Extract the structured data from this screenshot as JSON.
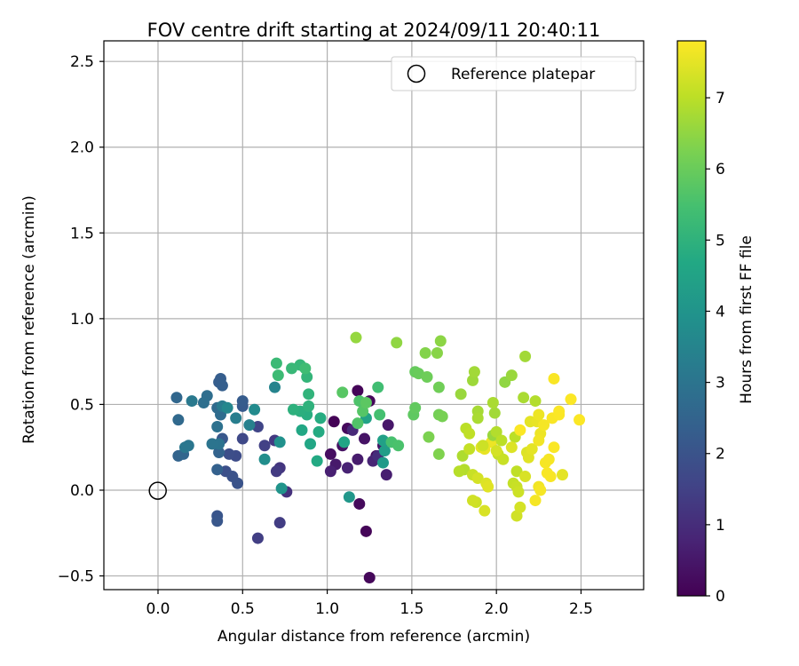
{
  "chart_data": {
    "type": "scatter",
    "title": "FOV centre drift starting at 2024/09/11 20:40:11",
    "xlabel": "Angular distance from reference (arcmin)",
    "ylabel": "Rotation from reference (arcmin)",
    "xlim": [
      -0.32,
      2.87
    ],
    "ylim": [
      -0.58,
      2.62
    ],
    "xticks": [
      0.0,
      0.5,
      1.0,
      1.5,
      2.0,
      2.5
    ],
    "xtick_labels": [
      "0.0",
      "0.5",
      "1.0",
      "1.5",
      "2.0",
      "2.5"
    ],
    "yticks": [
      -0.5,
      0.0,
      0.5,
      1.0,
      1.5,
      2.0,
      2.5
    ],
    "ytick_labels": [
      "−0.5",
      "0.0",
      "0.5",
      "1.0",
      "1.5",
      "2.0",
      "2.5"
    ],
    "grid": true,
    "legend": {
      "placement": "upper right",
      "entries": [
        "Reference platepar"
      ]
    },
    "reference_point": {
      "label": "Reference platepar",
      "x": 0.0,
      "y": 0.0
    },
    "colorbar": {
      "label": "Hours from first FF file",
      "colormap": "viridis",
      "range": [
        0,
        7.8
      ],
      "ticks": [
        0,
        1,
        2,
        3,
        4,
        5,
        6,
        7
      ],
      "tick_labels": [
        "0",
        "1",
        "2",
        "3",
        "4",
        "5",
        "6",
        "7"
      ]
    },
    "points": [
      {
        "x": 1.04,
        "y": 0.4,
        "c": 0.05
      },
      {
        "x": 1.18,
        "y": 0.58,
        "c": 0.1
      },
      {
        "x": 1.25,
        "y": 0.52,
        "c": 0.15
      },
      {
        "x": 1.12,
        "y": 0.36,
        "c": 0.2
      },
      {
        "x": 1.29,
        "y": 0.2,
        "c": 0.25
      },
      {
        "x": 1.02,
        "y": 0.21,
        "c": 0.3
      },
      {
        "x": 1.09,
        "y": 0.26,
        "c": 0.35
      },
      {
        "x": 1.22,
        "y": 0.3,
        "c": 0.4
      },
      {
        "x": 1.33,
        "y": 0.26,
        "c": 0.45
      },
      {
        "x": 1.36,
        "y": 0.38,
        "c": 0.5
      },
      {
        "x": 1.05,
        "y": 0.15,
        "c": 0.55
      },
      {
        "x": 1.18,
        "y": 0.18,
        "c": 0.6
      },
      {
        "x": 1.35,
        "y": 0.09,
        "c": 0.65
      },
      {
        "x": 1.02,
        "y": 0.11,
        "c": 0.7
      },
      {
        "x": 1.12,
        "y": 0.13,
        "c": 0.75
      },
      {
        "x": 1.27,
        "y": 0.17,
        "c": 0.8
      },
      {
        "x": 1.23,
        "y": -0.24,
        "c": 0.1
      },
      {
        "x": 1.19,
        "y": -0.08,
        "c": 0.2
      },
      {
        "x": 1.25,
        "y": -0.51,
        "c": 0.15
      },
      {
        "x": 1.15,
        "y": 0.35,
        "c": 0.9
      },
      {
        "x": 1.3,
        "y": 0.2,
        "c": 1.0
      },
      {
        "x": 0.76,
        "y": -0.01,
        "c": 1.1
      },
      {
        "x": 0.72,
        "y": 0.13,
        "c": 1.2
      },
      {
        "x": 0.69,
        "y": 0.29,
        "c": 1.3
      },
      {
        "x": 0.7,
        "y": 0.11,
        "c": 1.35
      },
      {
        "x": 0.72,
        "y": -0.19,
        "c": 1.4
      },
      {
        "x": 0.59,
        "y": -0.28,
        "c": 1.45
      },
      {
        "x": 0.63,
        "y": 0.26,
        "c": 1.5
      },
      {
        "x": 0.59,
        "y": 0.37,
        "c": 1.6
      },
      {
        "x": 0.5,
        "y": 0.3,
        "c": 1.7
      },
      {
        "x": 0.46,
        "y": 0.2,
        "c": 1.8
      },
      {
        "x": 0.42,
        "y": 0.21,
        "c": 1.85
      },
      {
        "x": 0.4,
        "y": 0.11,
        "c": 1.9
      },
      {
        "x": 0.44,
        "y": 0.08,
        "c": 1.95
      },
      {
        "x": 0.47,
        "y": 0.04,
        "c": 2.0
      },
      {
        "x": 0.35,
        "y": -0.15,
        "c": 2.05
      },
      {
        "x": 0.35,
        "y": -0.18,
        "c": 2.1
      },
      {
        "x": 0.38,
        "y": 0.3,
        "c": 2.15
      },
      {
        "x": 0.5,
        "y": 0.49,
        "c": 2.2
      },
      {
        "x": 0.5,
        "y": 0.52,
        "c": 2.25
      },
      {
        "x": 0.36,
        "y": 0.63,
        "c": 2.3
      },
      {
        "x": 0.37,
        "y": 0.65,
        "c": 2.3
      },
      {
        "x": 0.38,
        "y": 0.61,
        "c": 2.35
      },
      {
        "x": 0.35,
        "y": 0.12,
        "c": 2.4
      },
      {
        "x": 0.36,
        "y": 0.22,
        "c": 2.45
      },
      {
        "x": 0.12,
        "y": 0.2,
        "c": 2.5
      },
      {
        "x": 0.15,
        "y": 0.21,
        "c": 2.55
      },
      {
        "x": 0.11,
        "y": 0.54,
        "c": 2.6
      },
      {
        "x": 0.12,
        "y": 0.41,
        "c": 2.65
      },
      {
        "x": 0.35,
        "y": 0.48,
        "c": 2.7
      },
      {
        "x": 0.37,
        "y": 0.44,
        "c": 2.75
      },
      {
        "x": 0.29,
        "y": 0.55,
        "c": 2.8
      },
      {
        "x": 0.27,
        "y": 0.51,
        "c": 2.85
      },
      {
        "x": 0.35,
        "y": 0.37,
        "c": 2.9
      },
      {
        "x": 0.36,
        "y": 0.27,
        "c": 2.95
      },
      {
        "x": 0.32,
        "y": 0.27,
        "c": 3.0
      },
      {
        "x": 0.18,
        "y": 0.26,
        "c": 3.05
      },
      {
        "x": 0.16,
        "y": 0.25,
        "c": 3.1
      },
      {
        "x": 0.2,
        "y": 0.52,
        "c": 3.15
      },
      {
        "x": 0.38,
        "y": 0.49,
        "c": 3.2
      },
      {
        "x": 0.46,
        "y": 0.42,
        "c": 3.3
      },
      {
        "x": 0.54,
        "y": 0.38,
        "c": 3.4
      },
      {
        "x": 0.69,
        "y": 0.6,
        "c": 3.5
      },
      {
        "x": 0.41,
        "y": 0.48,
        "c": 3.6
      },
      {
        "x": 0.57,
        "y": 0.47,
        "c": 3.7
      },
      {
        "x": 0.63,
        "y": 0.18,
        "c": 3.8
      },
      {
        "x": 0.72,
        "y": 0.28,
        "c": 3.9
      },
      {
        "x": 0.73,
        "y": 0.01,
        "c": 4.0
      },
      {
        "x": 1.13,
        "y": -0.04,
        "c": 4.1
      },
      {
        "x": 1.33,
        "y": 0.16,
        "c": 4.2
      },
      {
        "x": 1.34,
        "y": 0.23,
        "c": 4.3
      },
      {
        "x": 1.33,
        "y": 0.29,
        "c": 4.4
      },
      {
        "x": 1.23,
        "y": 0.42,
        "c": 4.5
      },
      {
        "x": 1.1,
        "y": 0.28,
        "c": 4.55
      },
      {
        "x": 0.9,
        "y": 0.27,
        "c": 4.6
      },
      {
        "x": 0.85,
        "y": 0.35,
        "c": 4.65
      },
      {
        "x": 0.94,
        "y": 0.17,
        "c": 4.7
      },
      {
        "x": 0.95,
        "y": 0.34,
        "c": 4.75
      },
      {
        "x": 0.96,
        "y": 0.42,
        "c": 4.8
      },
      {
        "x": 0.88,
        "y": 0.44,
        "c": 4.85
      },
      {
        "x": 0.84,
        "y": 0.46,
        "c": 4.9
      },
      {
        "x": 0.8,
        "y": 0.47,
        "c": 4.95
      },
      {
        "x": 0.89,
        "y": 0.49,
        "c": 5.0
      },
      {
        "x": 0.89,
        "y": 0.56,
        "c": 5.05
      },
      {
        "x": 0.88,
        "y": 0.66,
        "c": 5.1
      },
      {
        "x": 0.84,
        "y": 0.73,
        "c": 5.15
      },
      {
        "x": 0.79,
        "y": 0.71,
        "c": 5.2
      },
      {
        "x": 0.7,
        "y": 0.74,
        "c": 5.25
      },
      {
        "x": 0.71,
        "y": 0.67,
        "c": 5.3
      },
      {
        "x": 0.87,
        "y": 0.71,
        "c": 5.35
      },
      {
        "x": 1.3,
        "y": 0.6,
        "c": 5.4
      },
      {
        "x": 1.31,
        "y": 0.44,
        "c": 5.45
      },
      {
        "x": 1.38,
        "y": 0.28,
        "c": 5.5
      },
      {
        "x": 1.42,
        "y": 0.26,
        "c": 5.55
      },
      {
        "x": 1.19,
        "y": 0.52,
        "c": 5.6
      },
      {
        "x": 1.18,
        "y": 0.39,
        "c": 5.65
      },
      {
        "x": 1.21,
        "y": 0.46,
        "c": 5.7
      },
      {
        "x": 1.09,
        "y": 0.57,
        "c": 5.75
      },
      {
        "x": 1.23,
        "y": 0.51,
        "c": 5.8
      },
      {
        "x": 1.51,
        "y": 0.44,
        "c": 5.85
      },
      {
        "x": 1.52,
        "y": 0.48,
        "c": 5.9
      },
      {
        "x": 1.52,
        "y": 0.69,
        "c": 5.95
      },
      {
        "x": 1.54,
        "y": 0.68,
        "c": 6.0
      },
      {
        "x": 1.59,
        "y": 0.66,
        "c": 6.05
      },
      {
        "x": 1.66,
        "y": 0.6,
        "c": 6.1
      },
      {
        "x": 1.66,
        "y": 0.44,
        "c": 6.15
      },
      {
        "x": 1.68,
        "y": 0.43,
        "c": 6.2
      },
      {
        "x": 1.6,
        "y": 0.31,
        "c": 6.25
      },
      {
        "x": 1.66,
        "y": 0.21,
        "c": 6.3
      },
      {
        "x": 1.58,
        "y": 0.8,
        "c": 6.35
      },
      {
        "x": 1.65,
        "y": 0.8,
        "c": 6.4
      },
      {
        "x": 1.67,
        "y": 0.87,
        "c": 6.45
      },
      {
        "x": 1.41,
        "y": 0.86,
        "c": 6.5
      },
      {
        "x": 1.17,
        "y": 0.89,
        "c": 6.55
      },
      {
        "x": 1.79,
        "y": 0.56,
        "c": 6.6
      },
      {
        "x": 1.86,
        "y": 0.64,
        "c": 6.65
      },
      {
        "x": 1.87,
        "y": 0.69,
        "c": 6.7
      },
      {
        "x": 1.89,
        "y": 0.46,
        "c": 6.75
      },
      {
        "x": 1.89,
        "y": 0.42,
        "c": 6.8
      },
      {
        "x": 1.8,
        "y": 0.2,
        "c": 6.85
      },
      {
        "x": 1.81,
        "y": 0.12,
        "c": 6.9
      },
      {
        "x": 1.78,
        "y": 0.11,
        "c": 6.95
      },
      {
        "x": 1.82,
        "y": 0.36,
        "c": 7.0
      },
      {
        "x": 1.84,
        "y": 0.33,
        "c": 7.05
      },
      {
        "x": 1.84,
        "y": 0.24,
        "c": 7.1
      },
      {
        "x": 1.86,
        "y": 0.09,
        "c": 7.15
      },
      {
        "x": 1.88,
        "y": -0.07,
        "c": 7.2
      },
      {
        "x": 1.86,
        "y": -0.06,
        "c": 7.25
      },
      {
        "x": 1.89,
        "y": 0.07,
        "c": 7.3
      },
      {
        "x": 1.93,
        "y": -0.12,
        "c": 7.35
      },
      {
        "x": 1.94,
        "y": 0.04,
        "c": 7.4
      },
      {
        "x": 1.95,
        "y": 0.02,
        "c": 7.45
      },
      {
        "x": 1.91,
        "y": 0.25,
        "c": 7.5
      },
      {
        "x": 1.93,
        "y": 0.24,
        "c": 7.55
      },
      {
        "x": 1.97,
        "y": 0.28,
        "c": 7.6
      },
      {
        "x": 1.98,
        "y": 0.32,
        "c": 6.6
      },
      {
        "x": 1.99,
        "y": 0.45,
        "c": 6.7
      },
      {
        "x": 1.98,
        "y": 0.51,
        "c": 6.8
      },
      {
        "x": 2.0,
        "y": 0.34,
        "c": 6.9
      },
      {
        "x": 2.03,
        "y": 0.29,
        "c": 7.0
      },
      {
        "x": 2.01,
        "y": 0.21,
        "c": 7.1
      },
      {
        "x": 2.04,
        "y": 0.18,
        "c": 7.15
      },
      {
        "x": 2.05,
        "y": 0.63,
        "c": 6.5
      },
      {
        "x": 2.09,
        "y": 0.67,
        "c": 6.6
      },
      {
        "x": 2.17,
        "y": 0.78,
        "c": 6.7
      },
      {
        "x": 2.16,
        "y": 0.54,
        "c": 6.8
      },
      {
        "x": 2.23,
        "y": 0.52,
        "c": 6.9
      },
      {
        "x": 2.11,
        "y": 0.31,
        "c": 7.0
      },
      {
        "x": 2.12,
        "y": 0.11,
        "c": 7.05
      },
      {
        "x": 2.1,
        "y": 0.04,
        "c": 7.1
      },
      {
        "x": 2.12,
        "y": 0.02,
        "c": 7.15
      },
      {
        "x": 2.13,
        "y": -0.01,
        "c": 7.2
      },
      {
        "x": 2.12,
        "y": -0.15,
        "c": 7.25
      },
      {
        "x": 2.14,
        "y": -0.1,
        "c": 7.3
      },
      {
        "x": 2.17,
        "y": 0.08,
        "c": 7.35
      },
      {
        "x": 2.18,
        "y": 0.22,
        "c": 7.4
      },
      {
        "x": 2.19,
        "y": 0.19,
        "c": 7.45
      },
      {
        "x": 2.21,
        "y": 0.24,
        "c": 7.5
      },
      {
        "x": 2.2,
        "y": 0.4,
        "c": 7.5
      },
      {
        "x": 2.24,
        "y": 0.4,
        "c": 7.55
      },
      {
        "x": 2.25,
        "y": 0.44,
        "c": 7.6
      },
      {
        "x": 2.26,
        "y": 0.33,
        "c": 7.6
      },
      {
        "x": 2.25,
        "y": 0.29,
        "c": 7.65
      },
      {
        "x": 2.25,
        "y": 0.02,
        "c": 7.65
      },
      {
        "x": 2.26,
        "y": 0.0,
        "c": 7.7
      },
      {
        "x": 2.23,
        "y": -0.06,
        "c": 7.7
      },
      {
        "x": 2.28,
        "y": 0.38,
        "c": 7.7
      },
      {
        "x": 2.29,
        "y": 0.16,
        "c": 7.72
      },
      {
        "x": 2.31,
        "y": 0.18,
        "c": 7.72
      },
      {
        "x": 2.3,
        "y": 0.1,
        "c": 7.74
      },
      {
        "x": 2.32,
        "y": 0.08,
        "c": 7.74
      },
      {
        "x": 2.33,
        "y": 0.42,
        "c": 7.75
      },
      {
        "x": 2.34,
        "y": 0.65,
        "c": 7.75
      },
      {
        "x": 2.34,
        "y": 0.25,
        "c": 7.76
      },
      {
        "x": 2.37,
        "y": 0.44,
        "c": 7.76
      },
      {
        "x": 2.37,
        "y": 0.46,
        "c": 7.77
      },
      {
        "x": 2.39,
        "y": 0.09,
        "c": 7.5
      },
      {
        "x": 2.44,
        "y": 0.53,
        "c": 7.78
      },
      {
        "x": 2.49,
        "y": 0.41,
        "c": 7.78
      },
      {
        "x": 2.14,
        "y": 0.35,
        "c": 7.78
      },
      {
        "x": 2.09,
        "y": 0.25,
        "c": 7.4
      },
      {
        "x": 1.92,
        "y": 0.26,
        "c": 7.2
      },
      {
        "x": 2.0,
        "y": 0.23,
        "c": 7.3
      }
    ]
  }
}
